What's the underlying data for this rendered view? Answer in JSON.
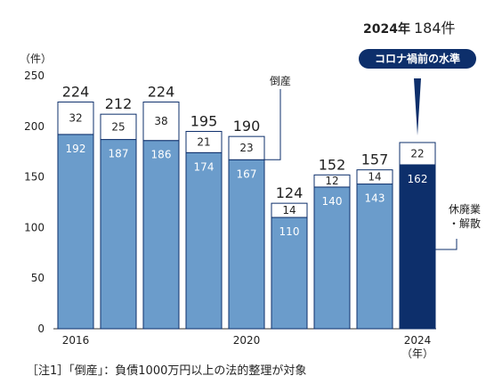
{
  "chart_data": {
    "type": "bar",
    "stacked": true,
    "categories": [
      "2016",
      "2017",
      "2018",
      "2019",
      "2020",
      "2021",
      "2022",
      "2023",
      "2024"
    ],
    "x_tick_labels": [
      "2016",
      "",
      "",
      "",
      "2020",
      "",
      "",
      "",
      "2024"
    ],
    "series": [
      {
        "name": "倒産",
        "values": [
          192,
          187,
          186,
          174,
          167,
          110,
          140,
          143,
          162
        ]
      },
      {
        "name": "休廃業・解散",
        "values": [
          32,
          25,
          38,
          21,
          23,
          14,
          12,
          14,
          22
        ]
      }
    ],
    "totals": [
      224,
      212,
      224,
      195,
      190,
      124,
      152,
      157,
      184
    ],
    "ylim": [
      0,
      250
    ],
    "yticks": [
      0,
      50,
      100,
      150,
      200,
      250
    ],
    "y_unit": "（件）",
    "x_unit": "（年）",
    "grid": false,
    "highlight": {
      "index": 8,
      "year_label": "2024年",
      "total_label": "184件",
      "banner": "コロナ禍前の水準"
    },
    "colors": {
      "bottom": "#6b9ccb",
      "bottom_highlight": "#0d2f6b",
      "top": "#ffffff",
      "outline": "#0d2f6b",
      "banner_bg": "#0d2f6b",
      "banner_text": "#ffffff"
    }
  },
  "note": "［注1］「倒産」：負債1000万円以上の法的整理が対象"
}
